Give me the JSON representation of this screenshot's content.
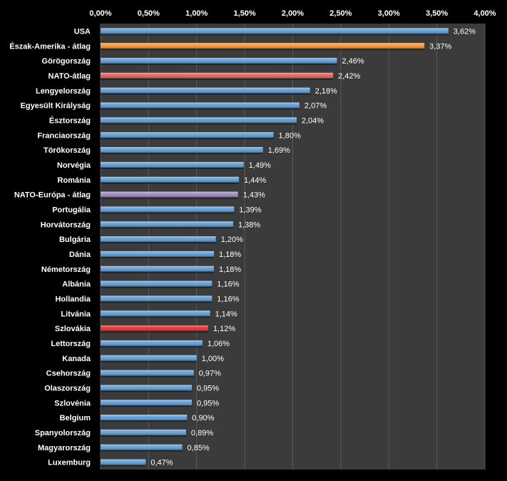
{
  "chart_data": {
    "type": "bar",
    "orientation": "horizontal",
    "title": "",
    "xlabel": "",
    "ylabel": "",
    "xlim": [
      0,
      4
    ],
    "x_ticks": [
      0,
      0.5,
      1,
      1.5,
      2,
      2.5,
      3,
      3.5,
      4
    ],
    "x_tick_labels": [
      "0,00%",
      "0,50%",
      "1,00%",
      "1,50%",
      "2,00%",
      "2,50%",
      "3,00%",
      "3,50%",
      "4,00%"
    ],
    "grid": true,
    "colors": {
      "default": "#5b9bd5",
      "north_america": "#f5932b",
      "nato_avg": "#e0605a",
      "nato_europe": "#9b86c2",
      "slovakia": "#e8292b",
      "plot_background": "#3b3b3b",
      "page_background": "#000000",
      "gridline": "#5a5a5a"
    },
    "bars": [
      {
        "category": "USA",
        "value": 3.62,
        "label": "3,62%",
        "color_key": "default"
      },
      {
        "category": "Észak-Amerika - átlag",
        "value": 3.37,
        "label": "3,37%",
        "color_key": "north_america"
      },
      {
        "category": "Görögország",
        "value": 2.46,
        "label": "2,46%",
        "color_key": "default"
      },
      {
        "category": "NATO-átlag",
        "value": 2.42,
        "label": "2,42%",
        "color_key": "nato_avg"
      },
      {
        "category": "Lengyelország",
        "value": 2.18,
        "label": "2,18%",
        "color_key": "default"
      },
      {
        "category": "Egyesült Királyság",
        "value": 2.07,
        "label": "2,07%",
        "color_key": "default"
      },
      {
        "category": "Észtország",
        "value": 2.04,
        "label": "2,04%",
        "color_key": "default"
      },
      {
        "category": "Franciaország",
        "value": 1.8,
        "label": "1,80%",
        "color_key": "default"
      },
      {
        "category": "Törökország",
        "value": 1.69,
        "label": "1,69%",
        "color_key": "default"
      },
      {
        "category": "Norvégia",
        "value": 1.49,
        "label": "1,49%",
        "color_key": "default"
      },
      {
        "category": "Románia",
        "value": 1.44,
        "label": "1,44%",
        "color_key": "default"
      },
      {
        "category": "NATO-Európa - átlag",
        "value": 1.43,
        "label": "1,43%",
        "color_key": "nato_europe"
      },
      {
        "category": "Portugália",
        "value": 1.39,
        "label": "1,39%",
        "color_key": "default"
      },
      {
        "category": "Horvátország",
        "value": 1.38,
        "label": "1,38%",
        "color_key": "default"
      },
      {
        "category": "Bulgária",
        "value": 1.2,
        "label": "1,20%",
        "color_key": "default"
      },
      {
        "category": "Dánia",
        "value": 1.18,
        "label": "1,18%",
        "color_key": "default"
      },
      {
        "category": "Németország",
        "value": 1.18,
        "label": "1,18%",
        "color_key": "default"
      },
      {
        "category": "Albánia",
        "value": 1.16,
        "label": "1,16%",
        "color_key": "default"
      },
      {
        "category": "Hollandia",
        "value": 1.16,
        "label": "1,16%",
        "color_key": "default"
      },
      {
        "category": "Litvánia",
        "value": 1.14,
        "label": "1,14%",
        "color_key": "default"
      },
      {
        "category": "Szlovákia",
        "value": 1.12,
        "label": "1,12%",
        "color_key": "slovakia"
      },
      {
        "category": "Lettország",
        "value": 1.06,
        "label": "1,06%",
        "color_key": "default"
      },
      {
        "category": "Kanada",
        "value": 1.0,
        "label": "1,00%",
        "color_key": "default"
      },
      {
        "category": "Csehország",
        "value": 0.97,
        "label": "0,97%",
        "color_key": "default"
      },
      {
        "category": "Olaszország",
        "value": 0.95,
        "label": "0,95%",
        "color_key": "default"
      },
      {
        "category": "Szlovénia",
        "value": 0.95,
        "label": "0,95%",
        "color_key": "default"
      },
      {
        "category": "Belgium",
        "value": 0.9,
        "label": "0,90%",
        "color_key": "default"
      },
      {
        "category": "Spanyolország",
        "value": 0.89,
        "label": "0,89%",
        "color_key": "default"
      },
      {
        "category": "Magyarország",
        "value": 0.85,
        "label": "0,85%",
        "color_key": "default"
      },
      {
        "category": "Luxemburg",
        "value": 0.47,
        "label": "0,47%",
        "color_key": "default"
      }
    ]
  }
}
